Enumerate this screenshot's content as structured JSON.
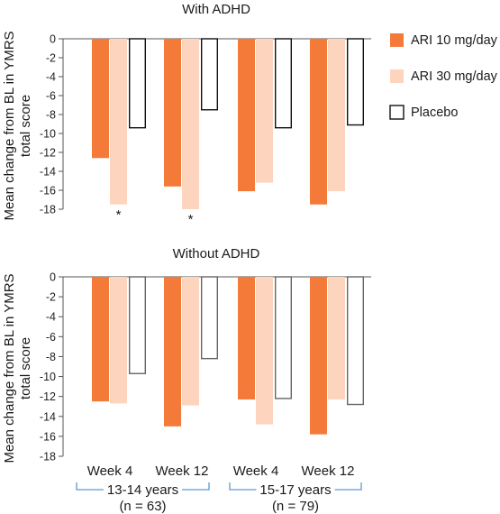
{
  "chart_data": [
    {
      "type": "bar",
      "title": "With ADHD",
      "ylabel": "Mean change from BL in YMRS total score",
      "ylim": [
        -18,
        0
      ],
      "yticks": [
        0,
        -2,
        -4,
        -6,
        -8,
        -10,
        -12,
        -14,
        -16,
        -18
      ],
      "categories": [
        "Week 4",
        "Week 12",
        "Week 4",
        "Week 12"
      ],
      "groups": [
        {
          "label": "13-14 years",
          "n_label": "(n = 63)",
          "categories": [
            "Week 4",
            "Week 12"
          ]
        },
        {
          "label": "15-17 years",
          "n_label": "(n = 79)",
          "categories": [
            "Week 4",
            "Week 12"
          ]
        }
      ],
      "series": [
        {
          "name": "ARI 10 mg/day",
          "color": "#f47a3a",
          "values": [
            -12.6,
            -15.6,
            -16.1,
            -17.5
          ]
        },
        {
          "name": "ARI 30 mg/day",
          "color": "#fdd5bf",
          "values": [
            -17.5,
            -18.0,
            -15.2,
            -16.1
          ]
        },
        {
          "name": "Placebo",
          "color": "#ffffff",
          "stroke": "#111111",
          "values": [
            -9.4,
            -7.5,
            -9.4,
            -9.1
          ]
        }
      ],
      "annotations": [
        {
          "text": "*",
          "category_index": 0,
          "series_index": 1
        },
        {
          "text": "*",
          "category_index": 1,
          "series_index": 1
        }
      ],
      "legend": "right"
    },
    {
      "type": "bar",
      "title": "Without ADHD",
      "ylabel": "Mean change from BL in YMRS total score",
      "ylim": [
        -18,
        0
      ],
      "yticks": [
        0,
        -2,
        -4,
        -6,
        -8,
        -10,
        -12,
        -14,
        -16,
        -18
      ],
      "categories": [
        "Week 4",
        "Week 12",
        "Week 4",
        "Week 12"
      ],
      "groups": [
        {
          "label": "13-14 years",
          "n_label": "(n = 63)",
          "categories": [
            "Week 4",
            "Week 12"
          ]
        },
        {
          "label": "15-17 years",
          "n_label": "(n = 79)",
          "categories": [
            "Week 4",
            "Week 12"
          ]
        }
      ],
      "series": [
        {
          "name": "ARI 10 mg/day",
          "color": "#f47a3a",
          "values": [
            -12.5,
            -15.0,
            -12.3,
            -15.8
          ]
        },
        {
          "name": "ARI 30 mg/day",
          "color": "#fdd5bf",
          "values": [
            -12.7,
            -12.9,
            -14.8,
            -12.3
          ]
        },
        {
          "name": "Placebo",
          "color": "#ffffff",
          "stroke": "#666666",
          "values": [
            -9.7,
            -8.2,
            -12.2,
            -12.8
          ]
        }
      ],
      "annotations": [],
      "legend": "none"
    }
  ],
  "group_bracket_color": "#5b9bd5"
}
